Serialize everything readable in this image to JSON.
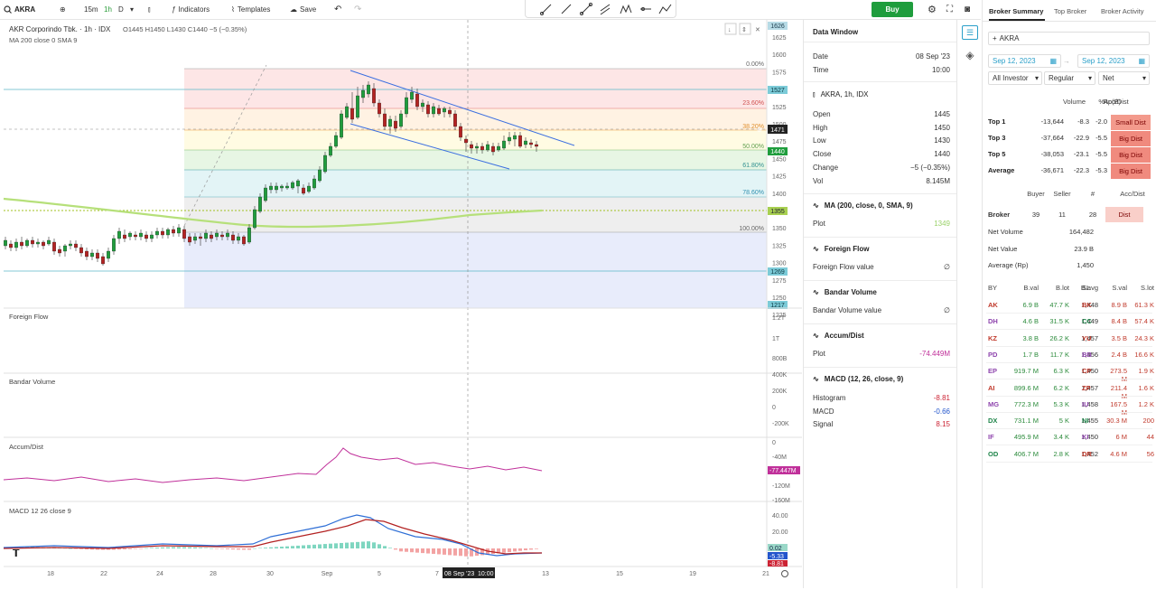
{
  "toolbar": {
    "symbol": "AKRA",
    "intervals": [
      "15m",
      "1h",
      "D"
    ],
    "active_interval": "1h",
    "indicators": "Indicators",
    "templates": "Templates",
    "save": "Save",
    "buy": "Buy"
  },
  "chart": {
    "header": {
      "title": "AKR Corporindo Tbk. · 1h · IDX",
      "ohlc": "O1445 H1450 L1430 C1440 −5 (−0.35%)",
      "ma": "MA 200 close 0 SMA 9"
    },
    "price_ticks": [
      "1625",
      "1600",
      "1575",
      "1550",
      "1525",
      "1500",
      "1475",
      "1450",
      "1425",
      "1400",
      "1375",
      "1350",
      "1325",
      "1300",
      "1275",
      "1250",
      "1225"
    ],
    "price_tags": {
      "top": "1626",
      "p1527": "1527",
      "cur": "1471",
      "close": "1440",
      "ma": "1355",
      "p1269": "1269",
      "p1217": "1217"
    },
    "fib_levels": [
      "0.00%",
      "23.60%",
      "38.20%",
      "50.00%",
      "61.80%",
      "78.60%",
      "100.00%"
    ],
    "panes": {
      "foreign": "Foreign Flow",
      "bandar": "Bandar Volume",
      "accum": "Accum/Dist",
      "macd": "MACD 12 26 close 9"
    },
    "foreign_ticks": [
      "1.2T",
      "1T",
      "800B"
    ],
    "bandar_ticks": [
      "400K",
      "200K",
      "0",
      "-200K"
    ],
    "accum_ticks": [
      "0",
      "-40M",
      "-77.447M",
      "-120M",
      "-160M"
    ],
    "macd_ticks": [
      "40.00",
      "20.00",
      "0.02",
      "-5.33",
      "-8.81"
    ],
    "x_ticks": [
      "18",
      "22",
      "24",
      "28",
      "30",
      "Sep",
      "5",
      "7",
      "13",
      "15",
      "19",
      "21"
    ],
    "crosshair_date": "08 Sep '23",
    "crosshair_time": "10:00",
    "chart_data": {
      "type": "candlestick",
      "ylim": [
        1217,
        1626
      ]
    }
  },
  "data_window": {
    "title": "Data Window",
    "date_label": "Date",
    "date": "08 Sep '23",
    "time_label": "Time",
    "time": "10:00",
    "symbol": "AKRA, 1h, IDX",
    "ohlc": [
      {
        "k": "Open",
        "v": "1445"
      },
      {
        "k": "High",
        "v": "1450"
      },
      {
        "k": "Low",
        "v": "1430"
      },
      {
        "k": "Close",
        "v": "1440"
      },
      {
        "k": "Change",
        "v": "−5 (−0.35%)"
      },
      {
        "k": "Vol",
        "v": "8.145M"
      }
    ],
    "ma_title": "MA (200, close, 0, SMA, 9)",
    "ma_plot_label": "Plot",
    "ma_plot": "1349",
    "ff_title": "Foreign Flow",
    "ff_label": "Foreign Flow value",
    "ff_value": "∅",
    "bv_title": "Bandar Volume",
    "bv_label": "Bandar Volume value",
    "bv_value": "∅",
    "ad_title": "Accum/Dist",
    "ad_label": "Plot",
    "ad_value": "-74.449M",
    "macd_title": "MACD (12, 26, close, 9)",
    "macd_rows": [
      {
        "k": "Histogram",
        "v": "-8.81"
      },
      {
        "k": "MACD",
        "v": "-0.66"
      },
      {
        "k": "Signal",
        "v": "8.15"
      }
    ]
  },
  "broker": {
    "tabs": [
      "Broker Summary",
      "Top Broker",
      "Broker Activity"
    ],
    "symbol": "AKRA",
    "date_from": "Sep 12, 2023",
    "date_to": "Sep 12, 2023",
    "filters": [
      "All Investor",
      "Regular",
      "Net"
    ],
    "top_head": [
      "Volume",
      "%",
      "Rp(B)",
      "Acc/Dist"
    ],
    "top_rows": [
      {
        "label": "Top 1",
        "vol": "-13,644",
        "pct": "-8.3",
        "rp": "-2.0",
        "ad": "Small Dist"
      },
      {
        "label": "Top 3",
        "vol": "-37,664",
        "pct": "-22.9",
        "rp": "-5.5",
        "ad": "Big Dist"
      },
      {
        "label": "Top 5",
        "vol": "-38,053",
        "pct": "-23.1",
        "rp": "-5.5",
        "ad": "Big Dist"
      },
      {
        "label": "Average",
        "vol": "-36,671",
        "pct": "-22.3",
        "rp": "-5.3",
        "ad": "Big Dist"
      }
    ],
    "broker_head": [
      "Buyer",
      "Seller",
      "#",
      "Acc/Dist"
    ],
    "broker_row": {
      "label": "Broker",
      "buyer": "39",
      "seller": "11",
      "n": "28",
      "ad": "Dist"
    },
    "stats": [
      {
        "k": "Net Volume",
        "v": "164,482"
      },
      {
        "k": "Net Value",
        "v": "23.9 B"
      },
      {
        "k": "Average (Rp)",
        "v": "1,450"
      }
    ],
    "table_head": [
      "BY",
      "B.val",
      "B.lot",
      "B.avg",
      "SL",
      "S.val",
      "S.lot"
    ],
    "table": [
      [
        "AK",
        "6.9 B",
        "47.7 K",
        "1,448",
        "BK",
        "8.9 B",
        "61.3 K"
      ],
      [
        "DH",
        "4.6 B",
        "31.5 K",
        "1,449",
        "CC",
        "8.4 B",
        "57.4 K"
      ],
      [
        "KZ",
        "3.8 B",
        "26.2 K",
        "1,457",
        "YU",
        "3.5 B",
        "24.3 K"
      ],
      [
        "PD",
        "1.7 B",
        "11.7 K",
        "1,456",
        "BB",
        "2.4 B",
        "16.6 K"
      ],
      [
        "EP",
        "919.7 M",
        "6.3 K",
        "1,450",
        "CP",
        "273.5 M",
        "1.9 K"
      ],
      [
        "AI",
        "899.6 M",
        "6.2 K",
        "1,457",
        "ZP",
        "211.4 M",
        "1.6 K"
      ],
      [
        "MG",
        "772.3 M",
        "5.3 K",
        "1,458",
        "IU",
        "167.5 M",
        "1.2 K"
      ],
      [
        "DX",
        "731.1 M",
        "5 K",
        "1,455",
        "NI",
        "30.3 M",
        "200"
      ],
      [
        "IF",
        "495.9 M",
        "3.4 K",
        "1,450",
        "KI",
        "6 M",
        "44"
      ],
      [
        "OD",
        "406.7 M",
        "2.8 K",
        "1,452",
        "DR",
        "4.6 M",
        "56"
      ]
    ],
    "buy_colors": [
      "#c0392b",
      "#8e44ad",
      "#c0392b",
      "#8e44ad",
      "#8e44ad",
      "#c0392b",
      "#8e44ad",
      "#1e8449",
      "#8e44ad",
      "#1e8449"
    ],
    "sell_colors": [
      "#c0392b",
      "#1e8449",
      "#c0392b",
      "#8e44ad",
      "#c0392b",
      "#c0392b",
      "#8e44ad",
      "#1e8449",
      "#8e44ad",
      "#c0392b"
    ]
  }
}
